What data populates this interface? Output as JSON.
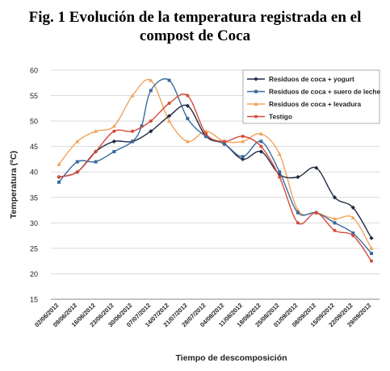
{
  "figure": {
    "title_line1": "Fig. 1 Evolución de la temperatura registrada en el",
    "title_line2": "compost de Coca"
  },
  "chart_data": {
    "type": "line",
    "x_tick_labels": [
      "02/06/2012",
      "09/06/2012",
      "16/06/2012",
      "23/06/2012",
      "30/06/2012",
      "07/07/2012",
      "14/07/2012",
      "21/07/2012",
      "28/07/2012",
      "04/08/2012",
      "11/08/2012",
      "18/08/2012",
      "25/08/2012",
      "01/09/2012",
      "08/09/2012",
      "15/09/2012",
      "22/09/2012",
      "29/09/2012"
    ],
    "xlabel": "Tiempo de descomposición",
    "ylabel": "Temperatura (ºC)",
    "ylim": [
      15,
      60
    ],
    "yticks": [
      15,
      20,
      25,
      30,
      35,
      40,
      45,
      50,
      55,
      60
    ],
    "grid": "horizontal",
    "legend_position": "top-right",
    "series": [
      {
        "name": "Residuos de coca + yogurt",
        "color": "#1f2a44",
        "marker": "diamond",
        "x": [
          0,
          1,
          2,
          3,
          4,
          5,
          6,
          7,
          8,
          9,
          10,
          11,
          12,
          13,
          14,
          15,
          16,
          17
        ],
        "y": [
          39,
          40,
          44,
          46,
          46,
          48,
          51,
          53,
          47,
          45.5,
          42.5,
          44,
          39.5,
          39,
          40.8,
          35,
          33,
          27
        ]
      },
      {
        "name": "Residuos de coca + suero de leche",
        "color": "#3a6a9e",
        "marker": "square",
        "x": [
          0,
          1,
          2,
          3,
          4,
          4.5,
          5,
          6,
          7,
          8,
          9,
          10,
          11,
          12,
          13,
          14,
          15,
          16,
          17
        ],
        "y": [
          38,
          42,
          42,
          44,
          46,
          49,
          56,
          58,
          50.5,
          47,
          45.5,
          43,
          46,
          40,
          32,
          32,
          30,
          28,
          24
        ]
      },
      {
        "name": "Residuos de coca + levadura",
        "color": "#f0a35c",
        "marker": "triangle",
        "x": [
          0,
          1,
          2,
          3,
          4,
          5,
          6,
          7,
          8,
          9,
          10,
          11,
          12,
          13,
          14,
          15,
          16,
          17
        ],
        "y": [
          41.5,
          46,
          48,
          49,
          55,
          58,
          50,
          46,
          48,
          46,
          46,
          47.5,
          43.5,
          32.5,
          32,
          30.8,
          31,
          25
        ]
      },
      {
        "name": "Testigo",
        "color": "#d64a3a",
        "marker": "circle",
        "x": [
          0,
          1,
          2,
          3,
          4,
          5,
          6,
          7,
          8,
          9,
          10,
          11,
          12,
          13,
          14,
          15,
          16,
          17
        ],
        "y": [
          39,
          40,
          44,
          48,
          48,
          50,
          53.5,
          55,
          47.5,
          46,
          47,
          45,
          39,
          30,
          32,
          28.5,
          27.5,
          22.5
        ]
      }
    ]
  }
}
